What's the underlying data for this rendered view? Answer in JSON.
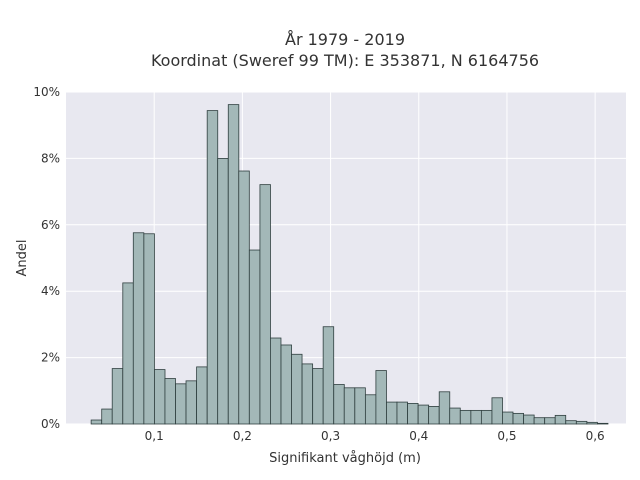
{
  "chart_data": {
    "type": "bar",
    "title_lines": [
      "År 1979 - 2019",
      "Koordinat (Sweref 99 TM): E 353871, N 6164756"
    ],
    "xlabel": "Signifikant våghöjd (m)",
    "ylabel": "Andel",
    "xlim": [
      0.0,
      0.635
    ],
    "ylim": [
      0,
      10
    ],
    "x_ticks": [
      0.1,
      0.2,
      0.3,
      0.4,
      0.5,
      0.6
    ],
    "x_tick_labels": [
      "0,1",
      "0,2",
      "0,3",
      "0,4",
      "0,5",
      "0,6"
    ],
    "y_ticks": [
      0,
      2,
      4,
      6,
      8,
      10
    ],
    "y_tick_labels": [
      "0%",
      "2%",
      "4%",
      "6%",
      "8%",
      "10%"
    ],
    "grid": true,
    "bar_color": "#a3b8b8",
    "bar_edge_color": "#2f3f3f",
    "background_color": "#e8e8f0",
    "bin_width": 0.01196,
    "bin_starts": [
      0.0285,
      0.0405,
      0.0524,
      0.0644,
      0.0763,
      0.0883,
      0.1003,
      0.1122,
      0.1242,
      0.1361,
      0.1481,
      0.1601,
      0.172,
      0.184,
      0.1959,
      0.2079,
      0.2199,
      0.2318,
      0.2438,
      0.2557,
      0.2677,
      0.2797,
      0.2916,
      0.3036,
      0.3155,
      0.3275,
      0.3395,
      0.3514,
      0.3634,
      0.3753,
      0.3873,
      0.3993,
      0.4112,
      0.4232,
      0.4351,
      0.4471,
      0.4591,
      0.471,
      0.483,
      0.4949,
      0.5069,
      0.5189,
      0.5308,
      0.5428,
      0.5547,
      0.5667,
      0.5787,
      0.5906,
      0.6026
    ],
    "values": [
      0.12,
      0.45,
      1.67,
      4.25,
      5.76,
      5.73,
      1.64,
      1.37,
      1.21,
      1.3,
      1.72,
      9.44,
      8.0,
      9.62,
      7.62,
      5.24,
      7.21,
      2.59,
      2.38,
      2.1,
      1.81,
      1.67,
      2.93,
      1.19,
      1.09,
      1.09,
      0.88,
      1.61,
      0.66,
      0.66,
      0.62,
      0.57,
      0.53,
      0.97,
      0.48,
      0.41,
      0.41,
      0.41,
      0.79,
      0.36,
      0.32,
      0.27,
      0.19,
      0.19,
      0.26,
      0.1,
      0.08,
      0.05,
      0.02
    ]
  }
}
